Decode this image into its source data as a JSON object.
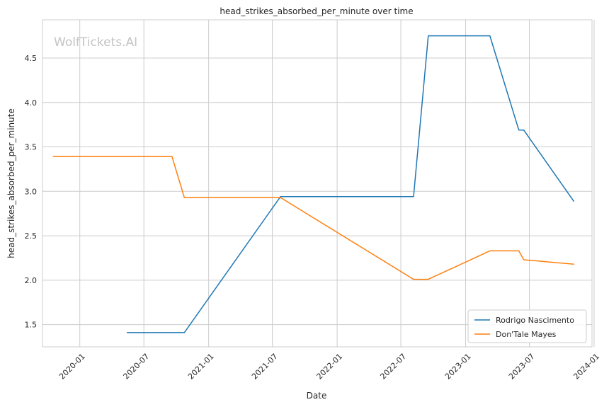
{
  "chart_data": {
    "type": "line",
    "title": "head_strikes_absorbed_per_minute over time",
    "xlabel": "Date",
    "ylabel": "head_strikes_absorbed_per_minute",
    "watermark": "WolfTickets.AI",
    "xlim": [
      "2019-09-17",
      "2023-12-26"
    ],
    "ylim": [
      1.25,
      4.93
    ],
    "x_ticks": [
      "2020-01-01",
      "2020-07-01",
      "2021-01-01",
      "2021-07-01",
      "2022-01-01",
      "2022-07-01",
      "2023-01-01",
      "2023-07-01",
      "2024-01-01"
    ],
    "x_tick_labels": [
      "2020-01",
      "2020-07",
      "2021-01",
      "2021-07",
      "2022-01",
      "2022-07",
      "2023-01",
      "2023-07",
      "2024-01"
    ],
    "y_ticks": [
      1.5,
      2.0,
      2.5,
      3.0,
      3.5,
      4.0,
      4.5
    ],
    "y_tick_labels": [
      "1.5",
      "2.0",
      "2.5",
      "3.0",
      "3.5",
      "4.0",
      "4.5"
    ],
    "grid": true,
    "legend_position": "bottom-right",
    "series": [
      {
        "name": "Rodrigo Nascimento",
        "color": "#1f77b4",
        "x": [
          "2020-05-15",
          "2020-10-24",
          "2021-07-24",
          "2022-08-06",
          "2022-09-17",
          "2023-03-11",
          "2023-06-01",
          "2023-06-15",
          "2023-11-04"
        ],
        "y": [
          1.41,
          1.41,
          2.94,
          2.94,
          4.75,
          4.75,
          3.69,
          3.69,
          2.89
        ]
      },
      {
        "name": "Don'Tale Mayes",
        "color": "#ff7f0e",
        "x": [
          "2019-10-18",
          "2020-09-19",
          "2020-10-24",
          "2021-07-24",
          "2022-08-06",
          "2022-09-17",
          "2023-03-11",
          "2023-06-01",
          "2023-06-15",
          "2023-11-04"
        ],
        "y": [
          3.39,
          3.39,
          2.93,
          2.93,
          2.01,
          2.01,
          2.33,
          2.33,
          2.23,
          2.18
        ]
      }
    ]
  }
}
